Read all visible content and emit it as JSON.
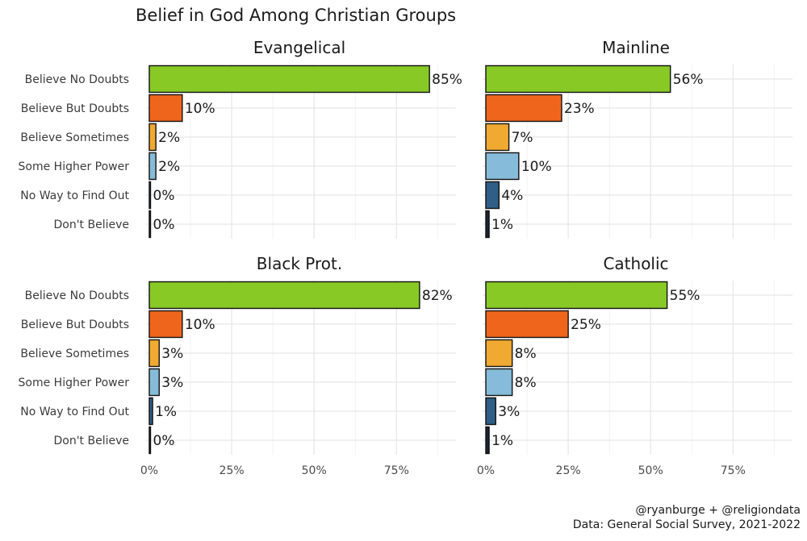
{
  "chart_data": {
    "type": "bar",
    "orientation": "horizontal",
    "title": "Belief in God Among Christian Groups",
    "categories": [
      "Believe No Doubts",
      "Believe But Doubts",
      "Believe Sometimes",
      "Some Higher Power",
      "No Way to Find Out",
      "Don't Believe"
    ],
    "category_colors": [
      "#88c926",
      "#f0651c",
      "#f0aa32",
      "#86bbd9",
      "#2f5f86",
      "#1b2431"
    ],
    "xlim": [
      0,
      0.95
    ],
    "xticks": [
      0,
      0.25,
      0.5,
      0.75
    ],
    "xtick_labels": [
      "0%",
      "25%",
      "50%",
      "75%"
    ],
    "xlabel": "",
    "ylabel": "",
    "facets": [
      {
        "name": "Evangelical",
        "values": [
          0.85,
          0.1,
          0.02,
          0.02,
          0.0,
          0.0
        ],
        "labels": [
          "85%",
          "10%",
          "2%",
          "2%",
          "0%",
          "0%"
        ]
      },
      {
        "name": "Mainline",
        "values": [
          0.56,
          0.23,
          0.07,
          0.1,
          0.04,
          0.01
        ],
        "labels": [
          "56%",
          "23%",
          "7%",
          "10%",
          "4%",
          "1%"
        ]
      },
      {
        "name": "Black Prot.",
        "values": [
          0.82,
          0.1,
          0.03,
          0.03,
          0.01,
          0.0
        ],
        "labels": [
          "82%",
          "10%",
          "3%",
          "3%",
          "1%",
          "0%"
        ]
      },
      {
        "name": "Catholic",
        "values": [
          0.55,
          0.25,
          0.08,
          0.08,
          0.03,
          0.01
        ],
        "labels": [
          "55%",
          "25%",
          "8%",
          "8%",
          "3%",
          "1%"
        ]
      }
    ],
    "caption": [
      "@ryanburge + @religiondata",
      "Data: General Social Survey, 2021-2022"
    ]
  }
}
